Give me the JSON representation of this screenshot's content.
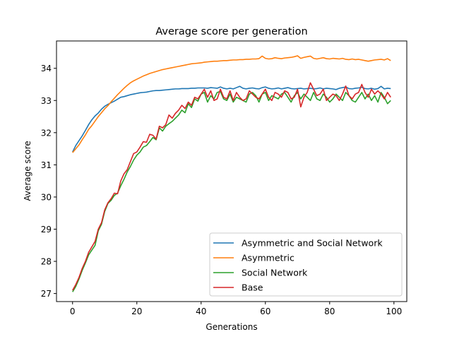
{
  "chart_data": {
    "type": "line",
    "title": "Average score per generation",
    "xlabel": "Generations",
    "ylabel": "Average score",
    "xlim": [
      -5,
      104
    ],
    "ylim": [
      26.75,
      34.85
    ],
    "xticks": [
      0,
      20,
      40,
      60,
      80,
      100
    ],
    "yticks": [
      27,
      28,
      29,
      30,
      31,
      32,
      33,
      34
    ],
    "grid": false,
    "legend_position": "lower-right",
    "series": [
      {
        "name": "Asymmetric and Social Network",
        "color": "#1f77b4",
        "values": [
          31.4,
          31.6,
          31.75,
          31.9,
          32.07,
          32.25,
          32.4,
          32.52,
          32.61,
          32.73,
          32.82,
          32.88,
          32.93,
          32.98,
          33.04,
          33.1,
          33.12,
          33.15,
          33.18,
          33.2,
          33.22,
          33.24,
          33.25,
          33.26,
          33.28,
          33.3,
          33.31,
          33.31,
          33.32,
          33.33,
          33.34,
          33.35,
          33.36,
          33.36,
          33.37,
          33.37,
          33.37,
          33.38,
          33.38,
          33.39,
          33.39,
          33.39,
          33.38,
          33.4,
          33.39,
          33.38,
          33.42,
          33.38,
          33.36,
          33.38,
          33.36,
          33.4,
          33.44,
          33.38,
          33.36,
          33.38,
          33.39,
          33.37,
          33.36,
          33.4,
          33.42,
          33.38,
          33.36,
          33.37,
          33.39,
          33.36,
          33.38,
          33.4,
          33.37,
          33.36,
          33.37,
          33.38,
          33.36,
          33.37,
          33.38,
          33.36,
          33.37,
          33.39,
          33.36,
          33.38,
          33.37,
          33.36,
          33.34,
          33.38,
          33.4,
          33.42,
          33.37,
          33.36,
          33.38,
          33.39,
          33.41,
          33.37,
          33.36,
          33.38,
          33.35,
          33.37,
          33.44,
          33.36,
          33.38,
          33.37
        ]
      },
      {
        "name": "Asymmetric",
        "color": "#ff7f0e",
        "values": [
          31.38,
          31.5,
          31.62,
          31.78,
          31.93,
          32.1,
          32.22,
          32.36,
          32.5,
          32.62,
          32.74,
          32.84,
          32.96,
          33.07,
          33.18,
          33.28,
          33.38,
          33.47,
          33.55,
          33.61,
          33.66,
          33.71,
          33.76,
          33.8,
          33.84,
          33.87,
          33.9,
          33.93,
          33.96,
          33.98,
          34.0,
          34.02,
          34.04,
          34.06,
          34.08,
          34.1,
          34.12,
          34.14,
          34.15,
          34.16,
          34.17,
          34.19,
          34.2,
          34.21,
          34.22,
          34.22,
          34.23,
          34.24,
          34.24,
          34.25,
          34.26,
          34.26,
          34.27,
          34.27,
          34.28,
          34.28,
          34.29,
          34.29,
          34.3,
          34.38,
          34.31,
          34.29,
          34.3,
          34.33,
          34.31,
          34.3,
          34.32,
          34.33,
          34.34,
          34.36,
          34.39,
          34.31,
          34.34,
          34.36,
          34.38,
          34.31,
          34.29,
          34.31,
          34.33,
          34.3,
          34.29,
          34.31,
          34.3,
          34.29,
          34.31,
          34.28,
          34.27,
          34.29,
          34.27,
          34.28,
          34.26,
          34.24,
          34.22,
          34.24,
          34.26,
          34.27,
          34.28,
          34.26,
          34.3,
          34.24
        ]
      },
      {
        "name": "Social Network",
        "color": "#2ca02c",
        "values": [
          27.05,
          27.22,
          27.45,
          27.72,
          27.95,
          28.2,
          28.35,
          28.5,
          28.95,
          29.15,
          29.55,
          29.8,
          29.9,
          30.05,
          30.12,
          30.35,
          30.55,
          30.78,
          30.95,
          31.15,
          31.3,
          31.4,
          31.55,
          31.6,
          31.72,
          31.85,
          31.78,
          32.15,
          32.05,
          32.2,
          32.28,
          32.35,
          32.45,
          32.55,
          32.7,
          32.62,
          32.9,
          32.78,
          33.05,
          32.98,
          33.2,
          33.25,
          32.95,
          33.15,
          33.05,
          33.25,
          33.28,
          33.05,
          33.0,
          33.2,
          32.95,
          33.1,
          33.05,
          33.0,
          32.95,
          33.2,
          33.25,
          33.15,
          32.95,
          33.2,
          33.25,
          33.0,
          33.15,
          33.1,
          33.05,
          33.2,
          33.25,
          33.1,
          32.95,
          33.15,
          33.25,
          33.05,
          33.2,
          33.1,
          33.0,
          33.25,
          33.05,
          33.0,
          33.2,
          33.1,
          32.95,
          33.05,
          33.2,
          33.1,
          33.0,
          33.25,
          33.15,
          33.0,
          32.95,
          33.1,
          33.25,
          33.05,
          33.2,
          33.0,
          33.15,
          32.95,
          33.25,
          33.1,
          32.9,
          33.0
        ]
      },
      {
        "name": "Base",
        "color": "#d62728",
        "values": [
          27.1,
          27.28,
          27.5,
          27.78,
          28.0,
          28.28,
          28.45,
          28.62,
          29.0,
          29.2,
          29.6,
          29.82,
          29.95,
          30.12,
          30.1,
          30.5,
          30.72,
          30.85,
          31.1,
          31.35,
          31.4,
          31.55,
          31.72,
          31.7,
          31.95,
          31.92,
          31.8,
          32.2,
          32.15,
          32.25,
          32.55,
          32.45,
          32.6,
          32.7,
          32.85,
          32.75,
          32.95,
          32.85,
          33.1,
          33.05,
          33.2,
          33.35,
          33.1,
          33.3,
          33.0,
          33.05,
          33.35,
          33.1,
          33.05,
          33.3,
          33.0,
          33.25,
          33.1,
          33.0,
          33.05,
          33.3,
          33.2,
          33.1,
          33.05,
          33.2,
          33.35,
          33.1,
          33.0,
          33.25,
          33.2,
          33.1,
          33.3,
          33.25,
          33.05,
          33.1,
          33.35,
          32.8,
          33.1,
          33.25,
          33.55,
          33.35,
          33.15,
          33.2,
          33.35,
          33.0,
          33.1,
          33.2,
          33.15,
          33.0,
          33.2,
          33.45,
          33.15,
          33.05,
          33.2,
          33.25,
          33.5,
          33.25,
          33.1,
          33.35,
          33.2,
          33.3,
          33.2,
          33.05,
          33.25,
          33.1
        ]
      }
    ]
  }
}
